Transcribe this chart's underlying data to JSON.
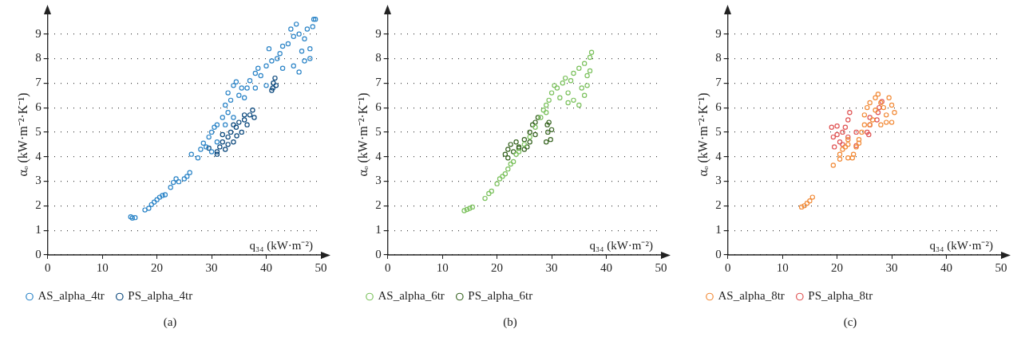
{
  "chart_data": [
    {
      "type": "scatter",
      "title": "(a)",
      "xlabel": "q₃₄ (kW·m⁻²)",
      "ylabel": "αₒ (kW·m⁻²·K⁻¹)",
      "xlim": [
        0,
        50
      ],
      "ylim": [
        0,
        9.8
      ],
      "xticks": [
        0,
        10,
        20,
        30,
        40,
        50
      ],
      "yticks": [
        0,
        1,
        2,
        3,
        4,
        5,
        6,
        7,
        8,
        9
      ],
      "grid": "y",
      "legend": "bottom left",
      "marker": "circle",
      "series": [
        {
          "name": "AS_alpha_4tr",
          "color": "#2e86c8",
          "x": [
            15.2,
            15.5,
            16,
            17.8,
            18.5,
            19,
            19.5,
            20,
            20.5,
            21,
            21.5,
            22.5,
            23,
            23.5,
            24,
            25,
            25.5,
            26,
            26.3,
            27.5,
            28,
            28.5,
            29,
            29.5,
            30,
            30.5,
            31,
            32,
            32.5,
            33,
            32.5,
            33,
            34,
            34.5,
            35,
            36,
            36.5,
            37,
            38,
            38.5,
            39,
            40,
            40.5,
            41,
            42,
            42.5,
            43,
            44,
            44.5,
            45,
            45.5,
            46,
            46,
            45,
            46.5,
            47,
            47.5,
            48,
            48.5,
            48.7,
            49,
            47,
            48,
            43,
            40,
            38,
            34,
            31,
            30,
            33.5,
            35.5
          ],
          "values": [
            1.55,
            1.5,
            1.52,
            1.83,
            1.9,
            2.05,
            2.15,
            2.25,
            2.35,
            2.42,
            2.45,
            2.75,
            2.95,
            3.1,
            2.98,
            3.1,
            3.2,
            3.35,
            4.1,
            3.95,
            4.3,
            4.55,
            4.4,
            4.8,
            5.0,
            5.2,
            5.3,
            5.6,
            5.3,
            5.8,
            6.1,
            6.6,
            6.9,
            7.05,
            6.5,
            6.4,
            6.8,
            7.1,
            7.4,
            7.6,
            7.3,
            7.7,
            8.4,
            7.9,
            8.0,
            8.2,
            8.5,
            8.6,
            9.2,
            8.9,
            9.4,
            7.45,
            9.0,
            7.7,
            8.3,
            8.8,
            9.2,
            8.4,
            9.3,
            9.6,
            9.6,
            7.9,
            8.0,
            7.6,
            6.9,
            6.8,
            5.6,
            4.6,
            4.2,
            6.3,
            6.8
          ]
        },
        {
          "name": "PS_alpha_4tr",
          "color": "#0d4a7e",
          "x": [
            29.5,
            31,
            31.5,
            32,
            32.5,
            33,
            33.5,
            34,
            34.5,
            35,
            35.5,
            36,
            36.5,
            37,
            37.5,
            37.8,
            31,
            33,
            34.6,
            41,
            41.3,
            41.6,
            41.8,
            41.2,
            34,
            32,
            36
          ],
          "values": [
            4.35,
            4.2,
            4.4,
            4.6,
            4.3,
            4.8,
            5.0,
            4.6,
            5.2,
            5.4,
            5.0,
            5.5,
            5.3,
            5.7,
            5.9,
            5.6,
            4.1,
            4.5,
            4.85,
            6.7,
            7.0,
            7.2,
            6.9,
            6.8,
            5.3,
            4.9,
            5.7
          ]
        }
      ]
    },
    {
      "type": "scatter",
      "title": "(b)",
      "xlabel": "q₃₄ (kW·m⁻²)",
      "ylabel": "αₒ (kW·m⁻²·K⁻¹)",
      "xlim": [
        0,
        50
      ],
      "ylim": [
        0,
        9.8
      ],
      "xticks": [
        0,
        10,
        20,
        30,
        40,
        50
      ],
      "yticks": [
        0,
        1,
        2,
        3,
        4,
        5,
        6,
        7,
        8,
        9
      ],
      "grid": "y",
      "legend": "bottom left",
      "marker": "circle",
      "series": [
        {
          "name": "AS_alpha_6tr",
          "color": "#7dc25f",
          "x": [
            14,
            14.5,
            15,
            15.5,
            17.8,
            18.5,
            19,
            20,
            20.5,
            21,
            21.5,
            22,
            22.5,
            23,
            23.5,
            24,
            25,
            26,
            27,
            28,
            28.5,
            29,
            29.5,
            30,
            30.5,
            31,
            32,
            32.5,
            33,
            33.5,
            34,
            34,
            35,
            35,
            35.5,
            36,
            36,
            36.5,
            37,
            37.3,
            37,
            36.5,
            31.5,
            33,
            29
          ],
          "values": [
            1.8,
            1.85,
            1.9,
            1.95,
            2.3,
            2.5,
            2.6,
            2.9,
            3.1,
            3.2,
            3.3,
            3.5,
            3.7,
            3.8,
            4.1,
            4.2,
            4.5,
            4.8,
            5.2,
            5.6,
            5.9,
            6.1,
            6.3,
            6.6,
            6.9,
            6.8,
            7.0,
            7.2,
            6.6,
            7.1,
            6.3,
            7.4,
            6.1,
            7.6,
            6.8,
            7.8,
            6.5,
            7.3,
            8.05,
            8.25,
            7.5,
            6.9,
            6.4,
            6.2,
            5.8
          ]
        },
        {
          "name": "PS_alpha_6tr",
          "color": "#3a6624",
          "x": [
            21.5,
            22,
            22.5,
            23,
            23.5,
            24,
            25,
            25,
            25.5,
            26,
            26.5,
            27,
            27.5,
            26,
            27,
            29,
            29.3,
            29.5,
            30,
            29.8,
            29.2,
            22,
            24
          ],
          "values": [
            4.1,
            4.3,
            4.5,
            4.2,
            4.6,
            4.4,
            4.3,
            4.7,
            4.4,
            5.0,
            5.3,
            5.4,
            5.6,
            4.6,
            4.9,
            4.6,
            5.0,
            5.4,
            5.1,
            4.7,
            5.3,
            3.95,
            4.35
          ]
        }
      ]
    },
    {
      "type": "scatter",
      "title": "(c)",
      "xlabel": "q₃₄ (kW·m⁻²)",
      "ylabel": "αₒ (kW·m⁻²·K⁻¹)",
      "xlim": [
        0,
        50
      ],
      "ylim": [
        0,
        9.8
      ],
      "xticks": [
        0,
        10,
        20,
        30,
        40,
        50
      ],
      "yticks": [
        0,
        1,
        2,
        3,
        4,
        5,
        6,
        7,
        8,
        9
      ],
      "grid": "y",
      "legend": "bottom left",
      "marker": "circle",
      "series": [
        {
          "name": "AS_alpha_8tr",
          "color": "#f28c3a",
          "x": [
            13.5,
            14,
            14.5,
            15,
            15.5,
            19.3,
            20.5,
            20.5,
            21,
            21.5,
            22,
            22,
            22.8,
            23,
            23.5,
            24,
            24,
            24.5,
            25,
            25,
            25.5,
            26,
            26.5,
            27,
            27.5,
            28,
            28.5,
            29,
            29.5,
            30,
            30.5,
            30,
            27,
            26,
            28,
            29,
            22
          ],
          "values": [
            1.95,
            2.0,
            2.1,
            2.2,
            2.35,
            3.65,
            3.9,
            4.1,
            4.3,
            4.4,
            4.5,
            3.95,
            3.95,
            4.1,
            4.4,
            4.55,
            4.7,
            5.0,
            5.3,
            5.7,
            6.0,
            6.2,
            5.5,
            6.4,
            6.55,
            5.3,
            6.0,
            5.7,
            6.4,
            6.1,
            5.8,
            5.4,
            5.9,
            5.3,
            6.2,
            5.4,
            4.7
          ]
        },
        {
          "name": "PS_alpha_8tr",
          "color": "#e05555",
          "x": [
            19,
            19.3,
            19.5,
            20,
            20.5,
            21,
            21.5,
            22,
            22.3,
            22,
            21,
            23.5,
            23.5,
            25.5,
            26,
            26,
            25.8,
            27.5,
            27.7,
            28.2,
            27.3,
            20
          ],
          "values": [
            5.2,
            4.8,
            4.4,
            4.9,
            4.6,
            5.0,
            5.2,
            5.5,
            5.8,
            4.8,
            4.5,
            5.0,
            4.45,
            5.0,
            5.3,
            5.6,
            4.9,
            5.8,
            6.0,
            6.25,
            5.5,
            5.25
          ]
        }
      ]
    }
  ]
}
